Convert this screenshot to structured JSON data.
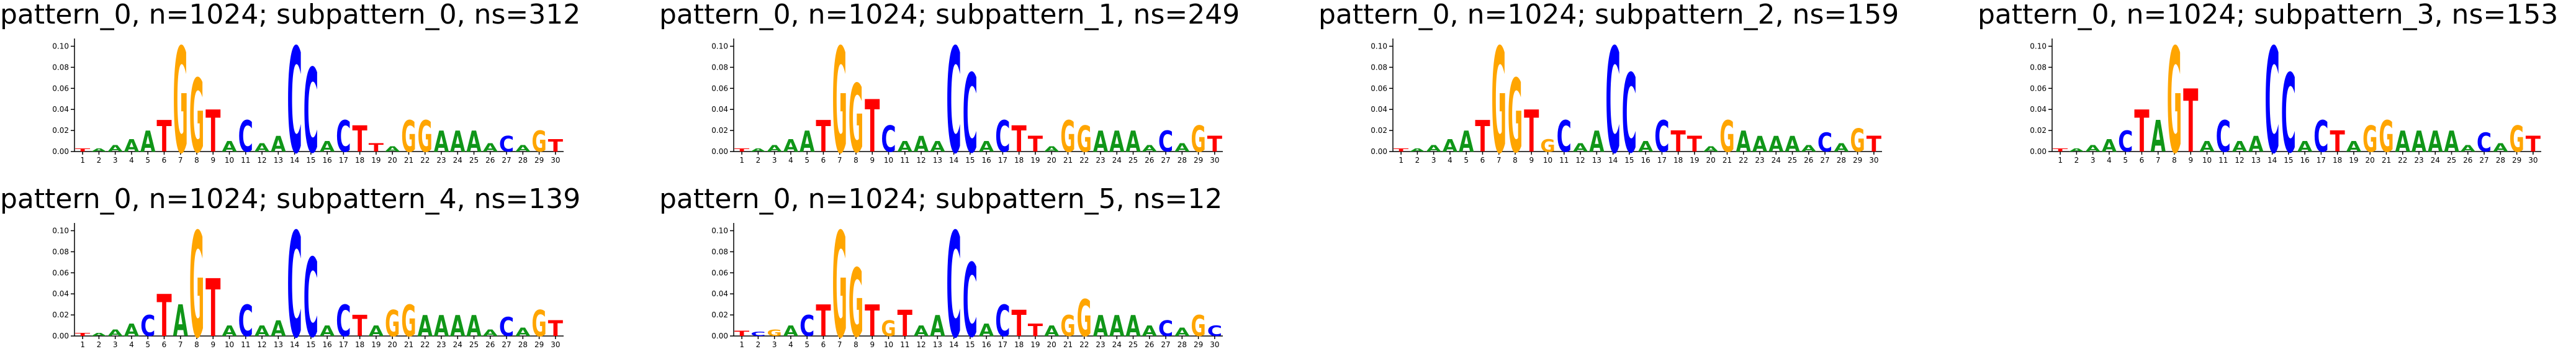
{
  "chart_data": [
    {
      "type": "logo",
      "title": "pattern_0, n=1024; subpattern_0, ns=312",
      "categories": [
        "1",
        "2",
        "3",
        "4",
        "5",
        "6",
        "7",
        "8",
        "9",
        "10",
        "11",
        "12",
        "13",
        "14",
        "15",
        "16",
        "17",
        "18",
        "19",
        "20",
        "21",
        "22",
        "23",
        "24",
        "25",
        "26",
        "27",
        "28",
        "29",
        "30"
      ],
      "letters": [
        "T",
        "A",
        "A",
        "A",
        "A",
        "T",
        "G",
        "G",
        "T",
        "A",
        "C",
        "A",
        "A",
        "C",
        "C",
        "A",
        "C",
        "T",
        "T",
        "A",
        "G",
        "G",
        "A",
        "A",
        "A",
        "A",
        "C",
        "A",
        "G",
        "T"
      ],
      "values": [
        0.003,
        0.003,
        0.006,
        0.012,
        0.02,
        0.03,
        0.1,
        0.07,
        0.04,
        0.01,
        0.03,
        0.008,
        0.015,
        0.1,
        0.08,
        0.01,
        0.03,
        0.025,
        0.008,
        0.005,
        0.03,
        0.03,
        0.02,
        0.02,
        0.02,
        0.008,
        0.015,
        0.006,
        0.02,
        0.012
      ],
      "colors": {
        "A": "#109618",
        "C": "#0000ff",
        "G": "#ffa500",
        "T": "#ff0000"
      },
      "ylim": [
        0,
        0.105
      ],
      "yticks": [
        {
          "value": 0,
          "label": "0.00"
        },
        0.02,
        0.04,
        0.06,
        0.08,
        {
          "value": 0.1,
          "label": "0.10"
        }
      ]
    },
    {
      "type": "logo",
      "title": "pattern_0, n=1024; subpattern_1, ns=249",
      "categories": [
        "1",
        "2",
        "3",
        "4",
        "5",
        "6",
        "7",
        "8",
        "9",
        "10",
        "11",
        "12",
        "13",
        "14",
        "15",
        "16",
        "17",
        "18",
        "19",
        "20",
        "21",
        "22",
        "23",
        "24",
        "25",
        "26",
        "27",
        "28",
        "29",
        "30"
      ],
      "letters": [
        "T",
        "A",
        "A",
        "A",
        "A",
        "T",
        "G",
        "G",
        "T",
        "C",
        "A",
        "A",
        "A",
        "C",
        "C",
        "A",
        "C",
        "T",
        "T",
        "A",
        "G",
        "G",
        "A",
        "A",
        "A",
        "A",
        "C",
        "A",
        "G",
        "T"
      ],
      "values": [
        0.003,
        0.003,
        0.006,
        0.012,
        0.02,
        0.03,
        0.1,
        0.065,
        0.05,
        0.025,
        0.01,
        0.015,
        0.01,
        0.1,
        0.075,
        0.01,
        0.03,
        0.025,
        0.015,
        0.005,
        0.03,
        0.025,
        0.02,
        0.02,
        0.02,
        0.006,
        0.02,
        0.008,
        0.025,
        0.015
      ],
      "colors": {
        "A": "#109618",
        "C": "#0000ff",
        "G": "#ffa500",
        "T": "#ff0000"
      },
      "ylim": [
        0,
        0.105
      ],
      "yticks": [
        {
          "value": 0,
          "label": "0.00"
        },
        0.02,
        0.04,
        0.06,
        0.08,
        {
          "value": 0.1,
          "label": "0.10"
        }
      ]
    },
    {
      "type": "logo",
      "title": "pattern_0, n=1024; subpattern_2, ns=159",
      "categories": [
        "1",
        "2",
        "3",
        "4",
        "5",
        "6",
        "7",
        "8",
        "9",
        "10",
        "11",
        "12",
        "13",
        "14",
        "15",
        "16",
        "17",
        "18",
        "19",
        "20",
        "21",
        "22",
        "23",
        "24",
        "25",
        "26",
        "27",
        "28",
        "29",
        "30"
      ],
      "letters": [
        "T",
        "A",
        "A",
        "A",
        "A",
        "T",
        "G",
        "G",
        "T",
        "G",
        "C",
        "A",
        "A",
        "C",
        "C",
        "A",
        "C",
        "T",
        "T",
        "A",
        "G",
        "A",
        "A",
        "A",
        "A",
        "A",
        "C",
        "A",
        "G",
        "T"
      ],
      "values": [
        0.003,
        0.003,
        0.006,
        0.012,
        0.02,
        0.03,
        0.1,
        0.07,
        0.04,
        0.012,
        0.03,
        0.008,
        0.02,
        0.1,
        0.075,
        0.01,
        0.03,
        0.02,
        0.015,
        0.005,
        0.03,
        0.02,
        0.015,
        0.015,
        0.015,
        0.006,
        0.018,
        0.008,
        0.022,
        0.015
      ],
      "colors": {
        "A": "#109618",
        "C": "#0000ff",
        "G": "#ffa500",
        "T": "#ff0000"
      },
      "ylim": [
        0,
        0.105
      ],
      "yticks": [
        {
          "value": 0,
          "label": "0.00"
        },
        0.02,
        0.04,
        0.06,
        0.08,
        {
          "value": 0.1,
          "label": "0.10"
        }
      ]
    },
    {
      "type": "logo",
      "title": "pattern_0, n=1024; subpattern_3, ns=153",
      "categories": [
        "1",
        "2",
        "3",
        "4",
        "5",
        "6",
        "7",
        "8",
        "9",
        "10",
        "11",
        "12",
        "13",
        "14",
        "15",
        "16",
        "17",
        "18",
        "19",
        "20",
        "21",
        "22",
        "23",
        "24",
        "25",
        "26",
        "27",
        "28",
        "29",
        "30"
      ],
      "letters": [
        "T",
        "A",
        "A",
        "A",
        "C",
        "T",
        "A",
        "G",
        "T",
        "A",
        "C",
        "A",
        "A",
        "C",
        "C",
        "A",
        "C",
        "T",
        "A",
        "G",
        "G",
        "A",
        "A",
        "A",
        "A",
        "A",
        "C",
        "A",
        "G",
        "T"
      ],
      "values": [
        0.003,
        0.003,
        0.006,
        0.012,
        0.02,
        0.04,
        0.03,
        0.1,
        0.06,
        0.01,
        0.03,
        0.01,
        0.015,
        0.1,
        0.075,
        0.01,
        0.03,
        0.02,
        0.01,
        0.025,
        0.03,
        0.02,
        0.02,
        0.02,
        0.02,
        0.006,
        0.018,
        0.008,
        0.025,
        0.015
      ],
      "colors": {
        "A": "#109618",
        "C": "#0000ff",
        "G": "#ffa500",
        "T": "#ff0000"
      },
      "ylim": [
        0,
        0.105
      ],
      "yticks": [
        {
          "value": 0,
          "label": "0.00"
        },
        0.02,
        0.04,
        0.06,
        0.08,
        {
          "value": 0.1,
          "label": "0.10"
        }
      ]
    },
    {
      "type": "logo",
      "title": "pattern_0, n=1024; subpattern_4, ns=139",
      "categories": [
        "1",
        "2",
        "3",
        "4",
        "5",
        "6",
        "7",
        "8",
        "9",
        "10",
        "11",
        "12",
        "13",
        "14",
        "15",
        "16",
        "17",
        "18",
        "19",
        "20",
        "21",
        "22",
        "23",
        "24",
        "25",
        "26",
        "27",
        "28",
        "29",
        "30"
      ],
      "letters": [
        "T",
        "A",
        "A",
        "A",
        "C",
        "T",
        "A",
        "G",
        "T",
        "A",
        "C",
        "A",
        "A",
        "C",
        "C",
        "A",
        "C",
        "T",
        "A",
        "G",
        "G",
        "A",
        "A",
        "A",
        "A",
        "A",
        "C",
        "A",
        "G",
        "T"
      ],
      "values": [
        0.003,
        0.003,
        0.006,
        0.012,
        0.02,
        0.04,
        0.03,
        0.1,
        0.055,
        0.01,
        0.03,
        0.01,
        0.015,
        0.1,
        0.075,
        0.01,
        0.03,
        0.02,
        0.01,
        0.025,
        0.03,
        0.02,
        0.02,
        0.02,
        0.02,
        0.006,
        0.018,
        0.008,
        0.025,
        0.015
      ],
      "colors": {
        "A": "#109618",
        "C": "#0000ff",
        "G": "#ffa500",
        "T": "#ff0000"
      },
      "ylim": [
        0,
        0.105
      ],
      "yticks": [
        {
          "value": 0,
          "label": "0.00"
        },
        0.02,
        0.04,
        0.06,
        0.08,
        {
          "value": 0.1,
          "label": "0.10"
        }
      ]
    },
    {
      "type": "logo",
      "title": "pattern_0, n=1024; subpattern_5, ns=12",
      "categories": [
        "1",
        "2",
        "3",
        "4",
        "5",
        "6",
        "7",
        "8",
        "9",
        "10",
        "11",
        "12",
        "13",
        "14",
        "15",
        "16",
        "17",
        "18",
        "19",
        "20",
        "21",
        "22",
        "23",
        "24",
        "25",
        "26",
        "27",
        "28",
        "29",
        "30"
      ],
      "letters": [
        "T",
        "C",
        "G",
        "A",
        "C",
        "T",
        "G",
        "G",
        "T",
        "G",
        "T",
        "A",
        "A",
        "C",
        "C",
        "A",
        "C",
        "T",
        "T",
        "A",
        "G",
        "G",
        "A",
        "A",
        "A",
        "A",
        "C",
        "A",
        "G",
        "C"
      ],
      "values": [
        0.005,
        0.004,
        0.006,
        0.01,
        0.02,
        0.03,
        0.1,
        0.065,
        0.03,
        0.015,
        0.025,
        0.01,
        0.02,
        0.1,
        0.07,
        0.012,
        0.03,
        0.025,
        0.012,
        0.01,
        0.02,
        0.035,
        0.02,
        0.02,
        0.02,
        0.01,
        0.015,
        0.008,
        0.02,
        0.01
      ],
      "colors": {
        "A": "#109618",
        "C": "#0000ff",
        "G": "#ffa500",
        "T": "#ff0000"
      },
      "ylim": [
        0,
        0.105
      ],
      "yticks": [
        {
          "value": 0,
          "label": "0.00"
        },
        0.02,
        0.04,
        0.06,
        0.08,
        {
          "value": 0.1,
          "label": "0.10"
        }
      ]
    }
  ]
}
